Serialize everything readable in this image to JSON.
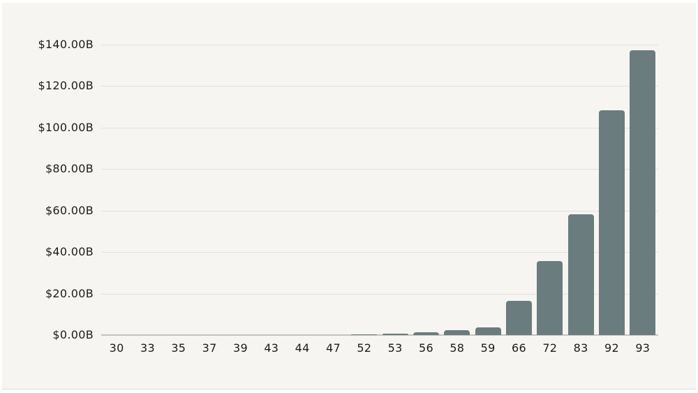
{
  "page": {
    "background": "#ffffff",
    "canvas_background": "#f6f5f1"
  },
  "chart_data": {
    "type": "bar",
    "title": "",
    "categories": [
      "30",
      "33",
      "35",
      "37",
      "39",
      "43",
      "44",
      "47",
      "52",
      "53",
      "56",
      "58",
      "59",
      "66",
      "72",
      "83",
      "92",
      "93"
    ],
    "values": [
      0,
      0,
      0,
      0,
      0,
      0,
      0,
      0,
      0.4,
      0.7,
      1.4,
      2.3,
      3.8,
      16.5,
      35.6,
      58.2,
      108.5,
      137.3
    ],
    "value_unit": "billions_usd",
    "xlabel": "",
    "ylabel": "",
    "ylim": [
      0,
      140
    ],
    "y_tick_step": 20,
    "y_tick_labels": [
      "$0.00B",
      "$20.00B",
      "$40.00B",
      "$60.00B",
      "$80.00B",
      "$100.00B",
      "$120.00B",
      "$140.00B"
    ],
    "grid": true,
    "legend": false,
    "colors": {
      "bar": "#6a7c7d",
      "gridline": "#e2e0dc",
      "axis_line": "#c6c3be",
      "label_text": "#1c1c1c",
      "background": "#f6f5f1"
    }
  }
}
